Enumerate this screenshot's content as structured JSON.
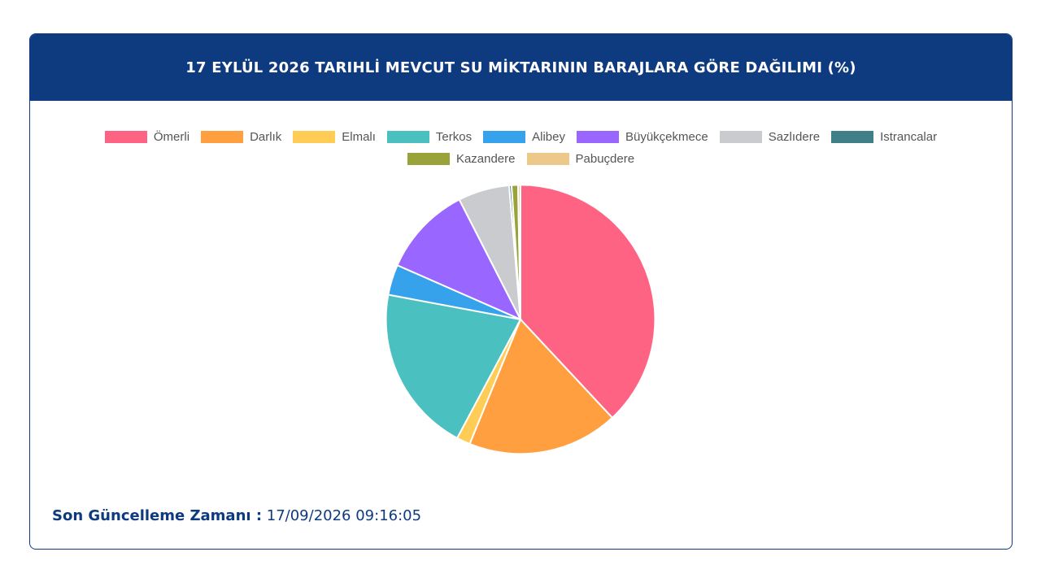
{
  "header": {
    "title": "17 EYLÜL 2026 TARIHLİ MEVCUT SU MİKTARININ BARAJLARA GÖRE DAĞILIMI (%)"
  },
  "chart_data": {
    "type": "pie",
    "title": "17 EYLÜL 2026 TARIHLİ MEVCUT SU MİKTARININ BARAJLARA GÖRE DAĞILIMI (%)",
    "legend_position": "top",
    "categories": [
      "Ömerli",
      "Darlık",
      "Elmalı",
      "Terkos",
      "Alibey",
      "Büyükçekmece",
      "Sazlıdere",
      "Istrancalar",
      "Kazandere",
      "Pabuçdere"
    ],
    "values": [
      39.5,
      18.8,
      1.7,
      20.9,
      3.8,
      11.3,
      6.4,
      0.3,
      0.8,
      0.3
    ],
    "colors": [
      "#ff6384",
      "#ff9f40",
      "#ffcd56",
      "#4bc0c0",
      "#36a2eb",
      "#9966ff",
      "#c9cbcf",
      "#3f7f87",
      "#9aa23a",
      "#ecc98a"
    ]
  },
  "footer": {
    "label": "Son Güncelleme Zamanı :",
    "value": " 17/09/2026 09:16:05"
  }
}
